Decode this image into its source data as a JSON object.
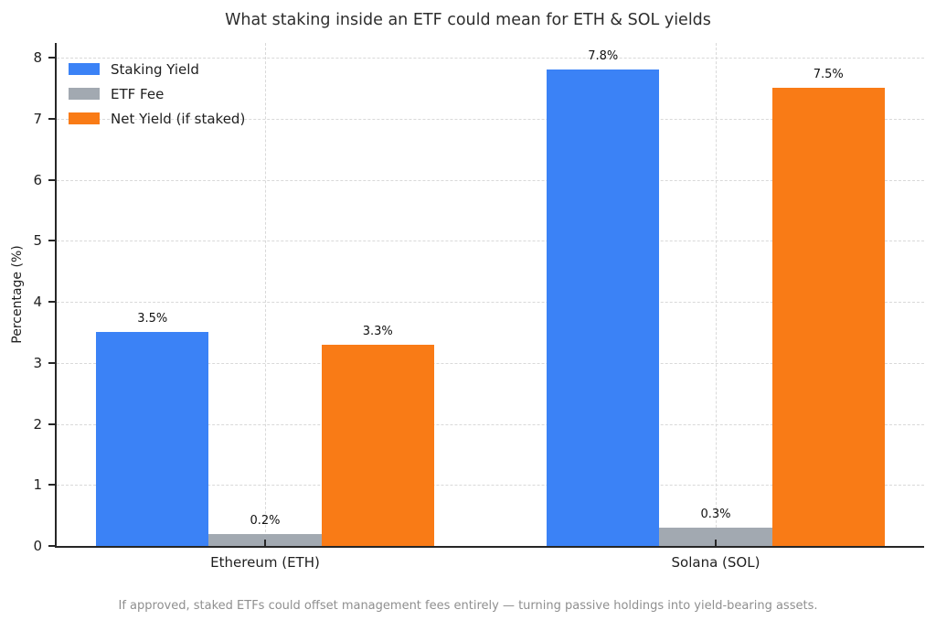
{
  "footer": "If approved, staked ETFs could offset management fees entirely — turning passive holdings into yield-bearing assets.",
  "colors": {
    "staking_yield": "#3b82f6",
    "etf_fee": "#a2a9b1",
    "net_yield": "#f97b16",
    "grid": "#d9d9d9",
    "spine": "#262626",
    "title_text": "#2e2e2e",
    "footer_text": "#8f8f8f",
    "background": "#ffffff"
  },
  "chart_data": {
    "type": "bar",
    "title": "What staking inside an ETF could mean for ETH & SOL yields",
    "xlabel": "",
    "ylabel": "Percentage (%)",
    "categories": [
      "Ethereum (ETH)",
      "Solana (SOL)"
    ],
    "series": [
      {
        "name": "Staking Yield",
        "color": "#3b82f6",
        "values": [
          3.5,
          7.8
        ],
        "labels": [
          "3.5%",
          "7.8%"
        ]
      },
      {
        "name": "ETF Fee",
        "color": "#a2a9b1",
        "values": [
          0.2,
          0.3
        ],
        "labels": [
          "0.2%",
          "0.3%"
        ]
      },
      {
        "name": "Net Yield (if staked)",
        "color": "#f97b16",
        "values": [
          3.3,
          7.5
        ],
        "labels": [
          "3.3%",
          "7.5%"
        ]
      }
    ],
    "yticks": [
      0,
      1,
      2,
      3,
      4,
      5,
      6,
      7,
      8
    ],
    "ylim": [
      0,
      8.24
    ],
    "grid": true,
    "grid_style": "dashed",
    "legend_position": "upper left",
    "caption": "If approved, staked ETFs could offset management fees entirely — turning passive holdings into yield-bearing assets."
  }
}
